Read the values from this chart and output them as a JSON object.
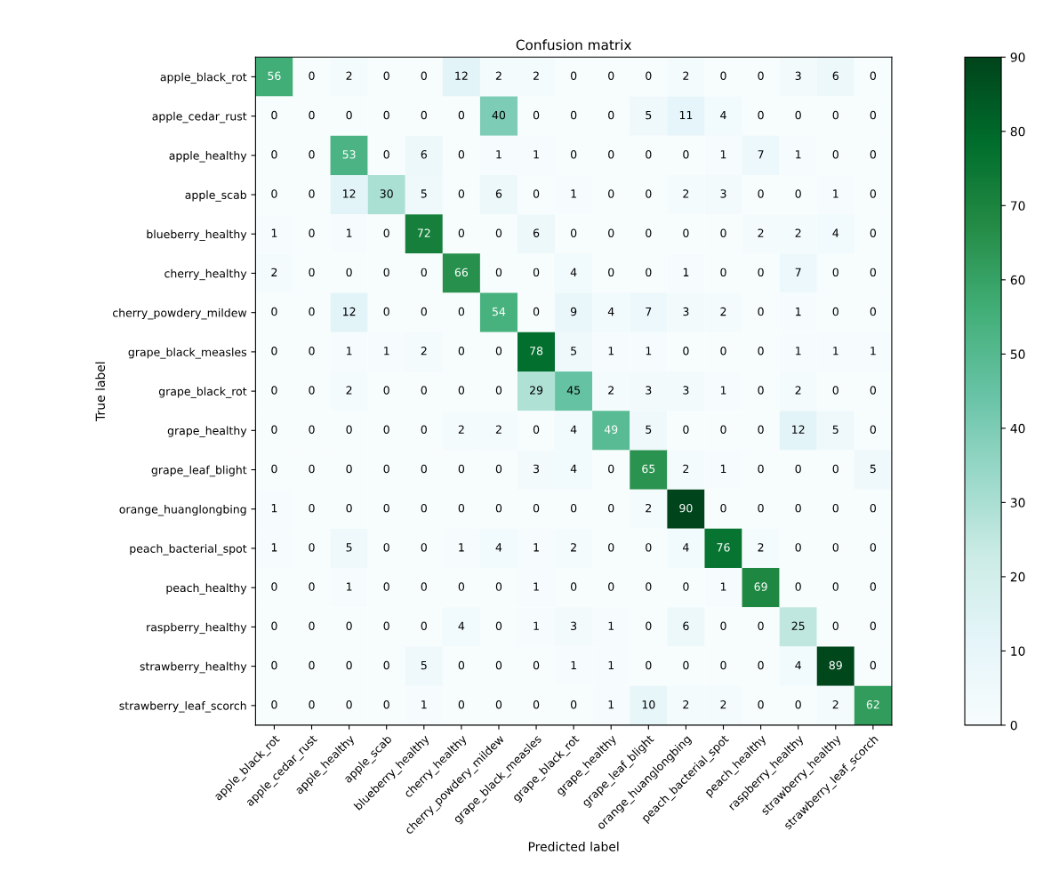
{
  "chart_data": {
    "type": "heatmap",
    "title": "Confusion matrix",
    "xlabel": "Predicted label",
    "ylabel": "True label",
    "categories": [
      "apple_black_rot",
      "apple_cedar_rust",
      "apple_healthy",
      "apple_scab",
      "blueberry_healthy",
      "cherry_healthy",
      "cherry_powdery_mildew",
      "grape_black_measles",
      "grape_black_rot",
      "grape_healthy",
      "grape_leaf_blight",
      "orange_huanglongbing",
      "peach_bacterial_spot",
      "peach_healthy",
      "raspberry_healthy",
      "strawberry_healthy",
      "strawberry_leaf_scorch"
    ],
    "y_categories": [
      "apple_black_rot",
      "apple_cedar_rust",
      "apple_healthy",
      "apple_scab",
      "blueberry_healthy",
      "cherry_healthy",
      "cherry_powdery_mildew",
      "grape_black_measles",
      "grape_black_rot",
      "grape_healthy",
      "grape_leaf_blight",
      "orange_huanglongbing",
      "peach_bacterial_spot",
      "peach_healthy",
      "raspberry_healthy",
      "strawberry_healthy",
      "strawberry_leaf_scorch"
    ],
    "cells": [
      [
        56,
        0,
        2,
        0,
        0,
        12,
        2,
        2,
        0,
        0,
        0,
        2,
        0,
        0,
        3,
        6,
        0
      ],
      [
        0,
        0,
        0,
        0,
        0,
        0,
        40,
        0,
        0,
        0,
        5,
        11,
        4,
        0,
        0,
        0,
        0
      ],
      [
        0,
        0,
        53,
        0,
        6,
        0,
        1,
        1,
        0,
        0,
        0,
        0,
        1,
        7,
        1,
        0,
        0
      ],
      [
        0,
        0,
        12,
        30,
        5,
        0,
        6,
        0,
        1,
        0,
        0,
        2,
        3,
        0,
        0,
        1,
        0
      ],
      [
        1,
        0,
        1,
        0,
        72,
        0,
        0,
        6,
        0,
        0,
        0,
        0,
        0,
        2,
        2,
        4,
        0
      ],
      [
        2,
        0,
        0,
        0,
        0,
        66,
        0,
        0,
        4,
        0,
        0,
        1,
        0,
        0,
        7,
        0,
        0
      ],
      [
        0,
        0,
        12,
        0,
        0,
        0,
        54,
        0,
        9,
        4,
        7,
        3,
        2,
        0,
        1,
        0,
        0
      ],
      [
        0,
        0,
        1,
        1,
        2,
        0,
        0,
        78,
        5,
        1,
        1,
        0,
        0,
        0,
        1,
        1,
        1
      ],
      [
        0,
        0,
        2,
        0,
        0,
        0,
        0,
        29,
        45,
        2,
        3,
        3,
        1,
        0,
        2,
        0,
        0
      ],
      [
        0,
        0,
        0,
        0,
        0,
        2,
        2,
        0,
        4,
        49,
        5,
        0,
        0,
        0,
        12,
        5,
        0
      ],
      [
        0,
        0,
        0,
        0,
        0,
        0,
        0,
        3,
        4,
        0,
        65,
        2,
        1,
        0,
        0,
        0,
        5
      ],
      [
        1,
        0,
        0,
        0,
        0,
        0,
        0,
        0,
        0,
        0,
        2,
        90,
        0,
        0,
        0,
        0,
        0
      ],
      [
        1,
        0,
        5,
        0,
        0,
        1,
        4,
        1,
        2,
        0,
        0,
        4,
        76,
        2,
        0,
        0,
        0
      ],
      [
        0,
        0,
        1,
        0,
        0,
        0,
        0,
        1,
        0,
        0,
        0,
        0,
        1,
        69,
        0,
        0,
        0
      ],
      [
        0,
        0,
        0,
        0,
        0,
        4,
        0,
        1,
        3,
        1,
        0,
        6,
        0,
        0,
        25,
        0,
        0
      ],
      [
        0,
        0,
        0,
        0,
        5,
        0,
        0,
        0,
        1,
        1,
        0,
        0,
        0,
        0,
        4,
        89,
        0
      ],
      [
        0,
        0,
        0,
        0,
        1,
        0,
        0,
        0,
        0,
        1,
        10,
        2,
        2,
        0,
        0,
        2,
        62
      ]
    ],
    "clim": [
      0,
      90
    ],
    "cticks": [
      0,
      10,
      20,
      30,
      40,
      50,
      60,
      70,
      80,
      90
    ],
    "data_labels": true
  }
}
